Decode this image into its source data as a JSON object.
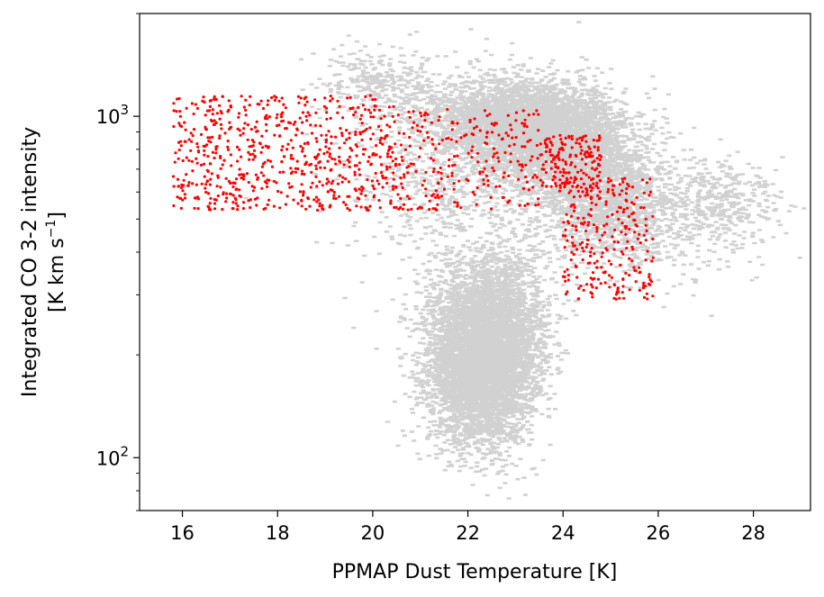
{
  "chart_data": {
    "type": "scatter",
    "title": "",
    "xlabel": "PPMAP Dust Temperature [K]",
    "ylabel_line1": "Integrated CO 3-2 intensity",
    "ylabel_line2": "[K km s",
    "ylabel_sup": "−1",
    "ylabel_end": "]",
    "xlim": [
      15.1,
      29.2
    ],
    "ylim": [
      70,
      2000
    ],
    "yscale": "log",
    "x_ticks": [
      16,
      18,
      20,
      22,
      24,
      26,
      28
    ],
    "x_tick_labels": [
      "16",
      "18",
      "20",
      "22",
      "24",
      "26",
      "28"
    ],
    "y_ticks": [
      100,
      1000
    ],
    "y_tick_labels": [
      {
        "base": "10",
        "exp": "2"
      },
      {
        "base": "10",
        "exp": "3"
      }
    ],
    "legend": "none",
    "grid": false,
    "series": [
      {
        "color": "#000000",
        "alpha": 0.18,
        "marker_size": 1.3,
        "approx_count": 38000,
        "clusters": [
          {
            "x_mean": 22.3,
            "x_sd": 0.55,
            "y_mean": 185,
            "y_logsd": 0.11,
            "weight": 0.34
          },
          {
            "x_mean": 22.5,
            "x_sd": 0.65,
            "y_mean": 270,
            "y_logsd": 0.1,
            "weight": 0.1
          },
          {
            "x_mean": 23.8,
            "x_sd": 0.75,
            "y_mean": 880,
            "y_logsd": 0.07,
            "weight": 0.22
          },
          {
            "x_mean": 22.6,
            "x_sd": 0.8,
            "y_mean": 1000,
            "y_logsd": 0.06,
            "weight": 0.1
          },
          {
            "x_mean": 24.8,
            "x_sd": 0.7,
            "y_mean": 600,
            "y_logsd": 0.09,
            "weight": 0.1
          },
          {
            "x_mean": 21.8,
            "x_sd": 1.2,
            "y_mean": 650,
            "y_logsd": 0.15,
            "weight": 0.06
          },
          {
            "x_mean": 25.8,
            "x_sd": 1.0,
            "y_mean": 520,
            "y_logsd": 0.1,
            "weight": 0.04
          },
          {
            "x_mean": 20.2,
            "x_sd": 0.6,
            "y_mean": 1250,
            "y_logsd": 0.05,
            "weight": 0.02
          },
          {
            "x_mean": 27.5,
            "x_sd": 0.6,
            "y_mean": 560,
            "y_logsd": 0.06,
            "weight": 0.02
          }
        ]
      },
      {
        "color": "#ff0000",
        "alpha": 1.0,
        "marker_size": 1.6,
        "approx_count": 1350,
        "regions": [
          {
            "x_min": 15.8,
            "x_max": 20.5,
            "y_min": 530,
            "y_max": 1150,
            "weight": 0.5
          },
          {
            "x_min": 20.5,
            "x_max": 23.5,
            "y_min": 530,
            "y_max": 1050,
            "weight": 0.18
          },
          {
            "x_min": 23.5,
            "x_max": 24.8,
            "y_min": 600,
            "y_max": 880,
            "weight": 0.12
          },
          {
            "x_min": 24.0,
            "x_max": 25.9,
            "y_min": 290,
            "y_max": 660,
            "weight": 0.2
          }
        ]
      }
    ]
  }
}
